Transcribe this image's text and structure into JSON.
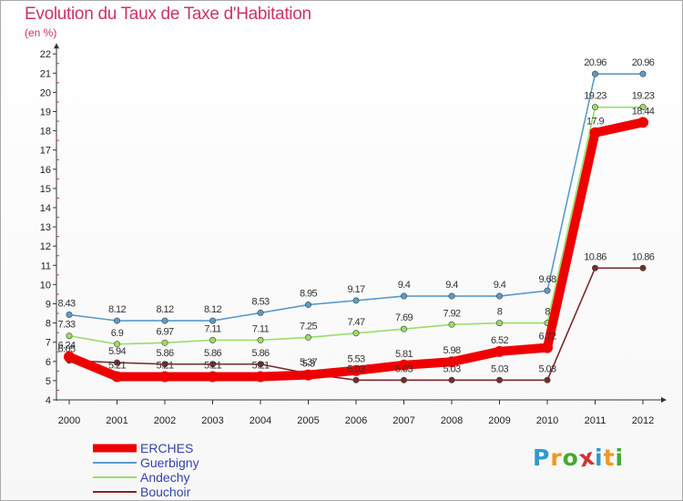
{
  "title": "Evolution du Taux de Taxe d'Habitation",
  "subtitle": "(en %)",
  "logo_letters": [
    "P",
    "r",
    "o",
    "x",
    "i",
    "t",
    "i"
  ],
  "logo_colors": [
    "#3399cc",
    "#ee9922",
    "#44aa33",
    "#cc3333",
    "#3399cc",
    "#ee9922",
    "#44aa33"
  ],
  "chart_data": {
    "type": "line",
    "title": "Evolution du Taux de Taxe d'Habitation",
    "ylabel": "(en %)",
    "x": [
      "2000",
      "2001",
      "2002",
      "2003",
      "2004",
      "2005",
      "2006",
      "2007",
      "2008",
      "2009",
      "2010",
      "2011",
      "2012"
    ],
    "ylim": [
      4,
      22
    ],
    "yticks": [
      "4",
      "5",
      "6",
      "7",
      "8",
      "9",
      "10",
      "11",
      "12",
      "13",
      "14",
      "15",
      "16",
      "17",
      "18",
      "19",
      "20",
      "21",
      "22"
    ],
    "grid": false,
    "legend": "bottom-left",
    "series": [
      {
        "name": "Guerbigny",
        "color": "#5b9bc8",
        "values": [
          8.43,
          8.12,
          8.12,
          8.12,
          8.53,
          8.95,
          9.17,
          9.4,
          9.4,
          9.4,
          9.68,
          20.96,
          20.96
        ],
        "labels": [
          "8.43",
          "8.12",
          "8.12",
          "8.12",
          "8.53",
          "8.95",
          "9.17",
          "9.4",
          "9.4",
          "9.4",
          "9.68",
          "20.96",
          "20.96"
        ]
      },
      {
        "name": "Andechy",
        "color": "#99dd66",
        "values": [
          7.33,
          6.9,
          6.97,
          7.11,
          7.11,
          7.25,
          7.47,
          7.69,
          7.92,
          8,
          8,
          19.23,
          19.23
        ],
        "labels": [
          "7.33",
          "6.9",
          "6.97",
          "7.11",
          "7.11",
          "7.25",
          "7.47",
          "7.69",
          "7.92",
          "8",
          "8",
          "19.23",
          "19.23"
        ]
      },
      {
        "name": "Bouchoir",
        "color": "#7a2a2a",
        "values": [
          6.05,
          5.94,
          5.86,
          5.86,
          5.86,
          5.37,
          5.03,
          5.03,
          5.03,
          5.03,
          5.03,
          10.86,
          10.86
        ],
        "labels": [
          "6.05",
          "5.94",
          "5.86",
          "5.86",
          "5.86",
          "5.37",
          "5.03",
          "5.03",
          "5.03",
          "5.03",
          "5.03",
          "10.86",
          "10.86"
        ]
      },
      {
        "name": "ERCHES",
        "color": "#ee0000",
        "values": [
          6.24,
          5.21,
          5.21,
          5.21,
          5.21,
          5.3,
          5.53,
          5.81,
          5.98,
          6.52,
          6.72,
          17.9,
          18.44
        ],
        "labels": [
          "6.24",
          "5.21",
          "5.21",
          "5.21",
          "5.21",
          "5.3",
          "5.53",
          "5.81",
          "5.98",
          "6.52",
          "6.72",
          "17.9",
          "18.44"
        ]
      }
    ],
    "legend_order": [
      "ERCHES",
      "Guerbigny",
      "Andechy",
      "Bouchoir"
    ]
  }
}
